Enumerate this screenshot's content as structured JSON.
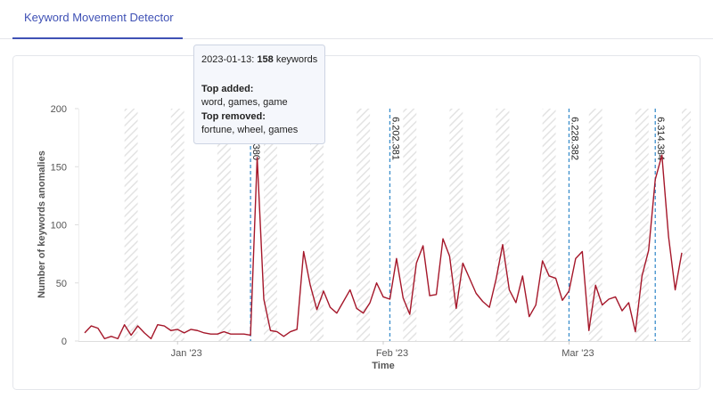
{
  "header": {
    "tab": "Keyword Movement Detector"
  },
  "chart_data": {
    "type": "line",
    "ylabel": "Number of keywords anomalies",
    "xlabel": "Time",
    "x": [
      "2022-12-18",
      "2022-12-19",
      "2022-12-20",
      "2022-12-21",
      "2022-12-22",
      "2022-12-23",
      "2022-12-24",
      "2022-12-25",
      "2022-12-26",
      "2022-12-27",
      "2022-12-28",
      "2022-12-29",
      "2022-12-30",
      "2022-12-31",
      "2023-01-01",
      "2023-01-02",
      "2023-01-03",
      "2023-01-04",
      "2023-01-05",
      "2023-01-06",
      "2023-01-07",
      "2023-01-08",
      "2023-01-09",
      "2023-01-10",
      "2023-01-11",
      "2023-01-12",
      "2023-01-13",
      "2023-01-14",
      "2023-01-15",
      "2023-01-16",
      "2023-01-17",
      "2023-01-18",
      "2023-01-19",
      "2023-01-20",
      "2023-01-21",
      "2023-01-22",
      "2023-01-23",
      "2023-01-24",
      "2023-01-25",
      "2023-01-26",
      "2023-01-27",
      "2023-01-28",
      "2023-01-29",
      "2023-01-30",
      "2023-01-31",
      "2023-02-01",
      "2023-02-02",
      "2023-02-03",
      "2023-02-04",
      "2023-02-05",
      "2023-02-06",
      "2023-02-07",
      "2023-02-08",
      "2023-02-09",
      "2023-02-10",
      "2023-02-11",
      "2023-02-12",
      "2023-02-13",
      "2023-02-14",
      "2023-02-15",
      "2023-02-16",
      "2023-02-17",
      "2023-02-18",
      "2023-02-19",
      "2023-02-20",
      "2023-02-21",
      "2023-02-22",
      "2023-02-23",
      "2023-02-24",
      "2023-02-25",
      "2023-02-26",
      "2023-02-27",
      "2023-02-28",
      "2023-03-01",
      "2023-03-02",
      "2023-03-03",
      "2023-03-04",
      "2023-03-05",
      "2023-03-06",
      "2023-03-07",
      "2023-03-08",
      "2023-03-09",
      "2023-03-10",
      "2023-03-11",
      "2023-03-12",
      "2023-03-13",
      "2023-03-14",
      "2023-03-15",
      "2023-03-16",
      "2023-03-17",
      "2023-03-18"
    ],
    "series": [
      {
        "color": "#a5172a",
        "values": [
          7,
          13,
          11,
          2,
          4,
          2,
          14,
          5,
          13,
          7,
          2,
          14,
          13,
          9,
          10,
          7,
          10,
          9,
          7,
          6,
          6,
          8,
          6,
          6,
          6,
          5,
          158,
          36,
          9,
          8,
          4,
          8,
          10,
          77,
          48,
          27,
          43,
          29,
          24,
          34,
          44,
          28,
          24,
          33,
          50,
          38,
          36,
          71,
          37,
          23,
          67,
          82,
          39,
          40,
          88,
          73,
          28,
          67,
          54,
          41,
          34,
          29,
          53,
          83,
          44,
          33,
          56,
          21,
          31,
          69,
          56,
          54,
          35,
          43,
          71,
          77,
          9,
          48,
          31,
          36,
          38,
          26,
          33,
          8,
          56,
          78,
          139,
          160,
          90,
          44,
          76
        ]
      }
    ],
    "ylim": [
      0,
      200
    ],
    "yticks": [
      0,
      50,
      100,
      150,
      200
    ],
    "xticks": [
      {
        "value": "2023-01-01",
        "label": "Jan '23"
      },
      {
        "value": "2023-02-01",
        "label": "Feb '23"
      },
      {
        "value": "2023-03-01",
        "label": "Mar '23"
      }
    ],
    "grid": false,
    "weekend_shading": true,
    "annotations": [
      {
        "x": "2023-01-12",
        "label": "380"
      },
      {
        "x": "2023-02-02",
        "label": "6.202.381"
      },
      {
        "x": "2023-03-01",
        "label": "6.228.382"
      },
      {
        "x": "2023-03-14",
        "label": "6.314.384"
      }
    ],
    "annotation_color": "#3d8fcc",
    "tooltip": {
      "date": "2023-01-13:",
      "value": 158,
      "unit": "keywords",
      "added_title": "Top added:",
      "added": "word, games, game",
      "removed_title": "Top removed:",
      "removed": "fortune, wheel, games"
    }
  }
}
